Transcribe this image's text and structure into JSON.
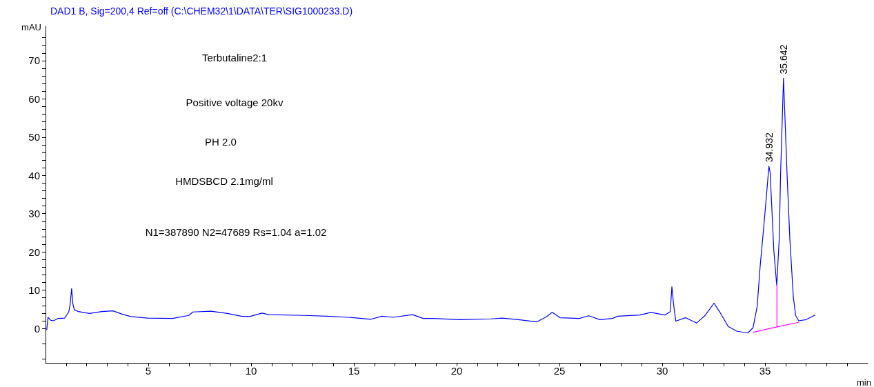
{
  "chart_data": {
    "type": "line",
    "title": "DAD1 B, Sig=200,4 Ref=off (C:\\CHEM32\\1\\DATA\\TER\\SIG1000233.D)",
    "xlabel": "min",
    "ylabel": "mAU",
    "marker": "none",
    "grid": false,
    "xlim": [
      0,
      40
    ],
    "ylim": [
      -9,
      79
    ],
    "xticks": [
      {
        "value": 1,
        "label": null
      },
      {
        "value": 2,
        "label": null
      },
      {
        "value": 3,
        "label": null
      },
      {
        "value": 4,
        "label": null
      },
      5,
      {
        "value": 6,
        "label": null
      },
      {
        "value": 7,
        "label": null
      },
      {
        "value": 8,
        "label": null
      },
      {
        "value": 9,
        "label": null
      },
      10,
      {
        "value": 11,
        "label": null
      },
      {
        "value": 12,
        "label": null
      },
      {
        "value": 13,
        "label": null
      },
      {
        "value": 14,
        "label": null
      },
      15,
      {
        "value": 16,
        "label": null
      },
      {
        "value": 17,
        "label": null
      },
      {
        "value": 18,
        "label": null
      },
      {
        "value": 19,
        "label": null
      },
      20,
      {
        "value": 21,
        "label": null
      },
      {
        "value": 22,
        "label": null
      },
      {
        "value": 23,
        "label": null
      },
      {
        "value": 24,
        "label": null
      },
      25,
      {
        "value": 26,
        "label": null
      },
      {
        "value": 27,
        "label": null
      },
      {
        "value": 28,
        "label": null
      },
      {
        "value": 29,
        "label": null
      },
      30,
      {
        "value": 31,
        "label": null
      },
      {
        "value": 32,
        "label": null
      },
      {
        "value": 33,
        "label": null
      },
      {
        "value": 34,
        "label": null
      },
      35,
      {
        "value": 36,
        "label": null
      },
      {
        "value": 37,
        "label": null
      },
      {
        "value": 38,
        "label": null
      },
      {
        "value": 39,
        "label": null
      }
    ],
    "yticks": [
      {
        "value": -8,
        "label": null
      },
      {
        "value": -4,
        "label": null
      },
      0,
      {
        "value": 2,
        "label": null
      },
      {
        "value": 4,
        "label": null
      },
      {
        "value": 6,
        "label": null
      },
      {
        "value": 8,
        "label": null
      },
      10,
      {
        "value": 12,
        "label": null
      },
      {
        "value": 14,
        "label": null
      },
      {
        "value": 16,
        "label": null
      },
      {
        "value": 18,
        "label": null
      },
      20,
      {
        "value": 22,
        "label": null
      },
      {
        "value": 24,
        "label": null
      },
      {
        "value": 26,
        "label": null
      },
      {
        "value": 28,
        "label": null
      },
      30,
      {
        "value": 32,
        "label": null
      },
      {
        "value": 34,
        "label": null
      },
      {
        "value": 36,
        "label": null
      },
      {
        "value": 38,
        "label": null
      },
      40,
      {
        "value": 42,
        "label": null
      },
      {
        "value": 44,
        "label": null
      },
      {
        "value": 46,
        "label": null
      },
      {
        "value": 48,
        "label": null
      },
      50,
      {
        "value": 52,
        "label": null
      },
      {
        "value": 54,
        "label": null
      },
      {
        "value": 56,
        "label": null
      },
      {
        "value": 58,
        "label": null
      },
      60,
      {
        "value": 62,
        "label": null
      },
      {
        "value": 64,
        "label": null
      },
      {
        "value": 66,
        "label": null
      },
      {
        "value": 68,
        "label": null
      },
      70,
      {
        "value": 72,
        "label": null
      },
      {
        "value": 74,
        "label": null
      },
      {
        "value": 76,
        "label": null
      }
    ],
    "series": [
      {
        "color": "#0000ff",
        "x": [
          0.06,
          0.12,
          0.26,
          0.39,
          0.6,
          0.93,
          1.13,
          1.2,
          1.27,
          1.33,
          1.4,
          1.6,
          2.14,
          2.74,
          3.28,
          3.75,
          4.15,
          4.96,
          6.17,
          6.97,
          7.17,
          8.05,
          8.85,
          9.52,
          9.93,
          10.53,
          10.87,
          12.61,
          13.69,
          14.76,
          15.83,
          16.37,
          16.91,
          17.85,
          18.38,
          18.85,
          20.19,
          21.67,
          22.21,
          23.01,
          23.89,
          24.35,
          24.65,
          25.03,
          25.97,
          26.43,
          26.97,
          27.58,
          27.84,
          28.92,
          29.45,
          30.13,
          30.39,
          30.47,
          30.55,
          30.66,
          31.13,
          31.67,
          32.07,
          32.52,
          32.81,
          33.21,
          33.62,
          34.16,
          34.42,
          34.62,
          34.76,
          34.98,
          35.19,
          35.25,
          35.43,
          35.57,
          35.69,
          35.76,
          35.9,
          36.07,
          36.21,
          36.38,
          36.49,
          36.64,
          37.0,
          37.44
        ],
        "values": [
          -0.4,
          2.9,
          2.1,
          2.0,
          2.6,
          2.7,
          4.3,
          6.4,
          10.4,
          6.4,
          4.9,
          4.4,
          3.9,
          4.4,
          4.6,
          3.7,
          3.1,
          2.7,
          2.6,
          3.4,
          4.3,
          4.5,
          3.9,
          3.2,
          3.1,
          4.0,
          3.6,
          3.4,
          3.2,
          2.9,
          2.4,
          3.2,
          2.9,
          3.6,
          2.6,
          2.6,
          2.3,
          2.5,
          2.7,
          2.3,
          1.7,
          3.0,
          4.2,
          2.8,
          2.6,
          3.3,
          2.3,
          2.6,
          3.2,
          3.5,
          4.2,
          3.5,
          4.4,
          10.9,
          6.5,
          1.9,
          2.8,
          1.4,
          3.3,
          6.6,
          4.2,
          0.5,
          -0.7,
          -1.2,
          0.2,
          5.8,
          16.0,
          29,
          42.4,
          40.7,
          20.3,
          11.3,
          23.2,
          40.7,
          65.4,
          40.7,
          23.2,
          8.1,
          3.4,
          2.0,
          2.3,
          3.5
        ]
      },
      {
        "color": "#ff00ff",
        "x": [
          34.43,
          35.58,
          36.64
        ],
        "values": [
          -1.0,
          0.4,
          1.6
        ]
      },
      {
        "color": "#ff00ff",
        "x": [
          35.58,
          35.58
        ],
        "values": [
          0.4,
          11.3
        ]
      }
    ],
    "annotations": [
      {
        "text": "34.932",
        "x": 35.19,
        "y": 42.4
      },
      {
        "text": "35.642",
        "x": 35.9,
        "y": 65.4
      },
      "Terbutaline2:1",
      "Positive voltage 20kv",
      "PH 2.0",
      "HMDSBCD 2.1mg/ml",
      "N1=387890 N2=47689 Rs=1.04 a=1.02"
    ]
  }
}
